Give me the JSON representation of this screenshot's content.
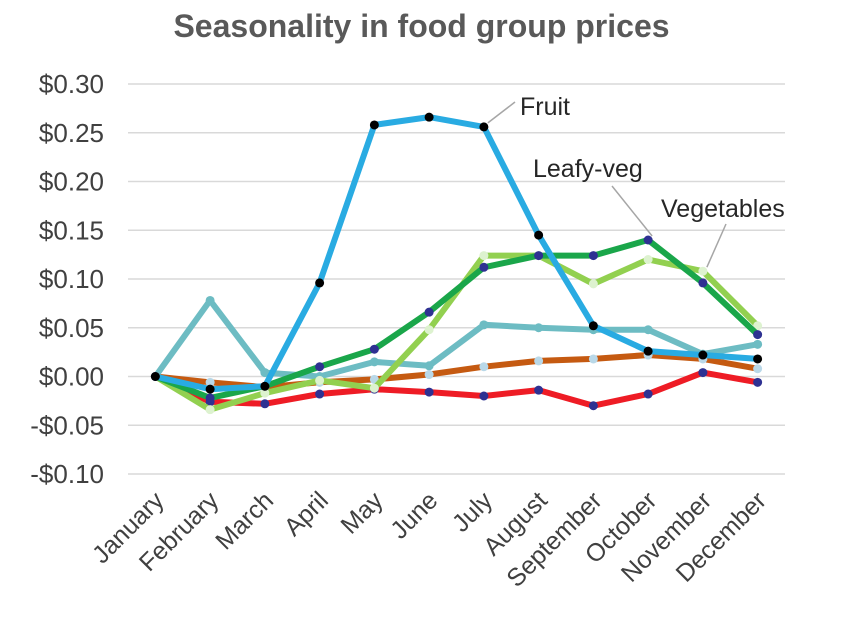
{
  "chart_data": {
    "type": "line",
    "title": "Seasonality in food group prices",
    "xlabel": "",
    "ylabel": "",
    "categories": [
      "January",
      "February",
      "March",
      "April",
      "May",
      "June",
      "July",
      "August",
      "September",
      "October",
      "November",
      "December"
    ],
    "ylim": [
      -0.1,
      0.3
    ],
    "yticks": [
      0.3,
      0.25,
      0.2,
      0.15,
      0.1,
      0.05,
      0.0,
      -0.05,
      -0.1
    ],
    "ytick_labels": [
      "$0.30",
      "$0.25",
      "$0.20",
      "$0.15",
      "$0.10",
      "$0.05",
      "$0.00",
      "-$0.05",
      "-$0.10"
    ],
    "grid": true,
    "legend": "none",
    "series": [
      {
        "name": "",
        "color": "#C55A11",
        "marker": "#B9D8E8",
        "values": [
          0.0,
          -0.006,
          -0.011,
          -0.006,
          -0.003,
          0.002,
          0.01,
          0.016,
          0.018,
          0.022,
          0.018,
          0.008
        ]
      },
      {
        "name": "",
        "color": "#EE1C25",
        "marker": "#2E3192",
        "values": [
          0.0,
          -0.026,
          -0.028,
          -0.018,
          -0.013,
          -0.016,
          -0.02,
          -0.014,
          -0.03,
          -0.018,
          0.004,
          -0.006
        ]
      },
      {
        "name": "",
        "color": "#6DBCC3",
        "marker": "#6DBCC3",
        "values": [
          0.0,
          0.078,
          0.004,
          0.0,
          0.015,
          0.011,
          0.053,
          0.05,
          0.048,
          0.048,
          0.023,
          0.033
        ]
      },
      {
        "name": "Vegetables",
        "color": "#92D050",
        "marker": "#DDF2CF",
        "values": [
          0.0,
          -0.034,
          -0.017,
          -0.004,
          -0.012,
          0.048,
          0.124,
          0.124,
          0.095,
          0.12,
          0.108,
          0.052
        ]
      },
      {
        "name": "Leafy-veg",
        "color": "#1AA64A",
        "marker": "#2E3192",
        "values": [
          0.0,
          -0.022,
          -0.01,
          0.01,
          0.028,
          0.066,
          0.112,
          0.124,
          0.124,
          0.14,
          0.096,
          0.043
        ]
      },
      {
        "name": "Fruit",
        "color": "#29ABE2",
        "marker": "#000000",
        "values": [
          0.0,
          -0.013,
          -0.01,
          0.096,
          0.258,
          0.266,
          0.256,
          0.145,
          0.052,
          0.026,
          0.022,
          0.018
        ]
      }
    ],
    "annotations": [
      {
        "text": "Fruit",
        "series": "Fruit",
        "point_index": 6
      },
      {
        "text": "Leafy-veg",
        "series": "Leafy-veg",
        "point_index": 9
      },
      {
        "text": "Vegetables",
        "series": "Vegetables",
        "point_index": 10
      }
    ]
  }
}
